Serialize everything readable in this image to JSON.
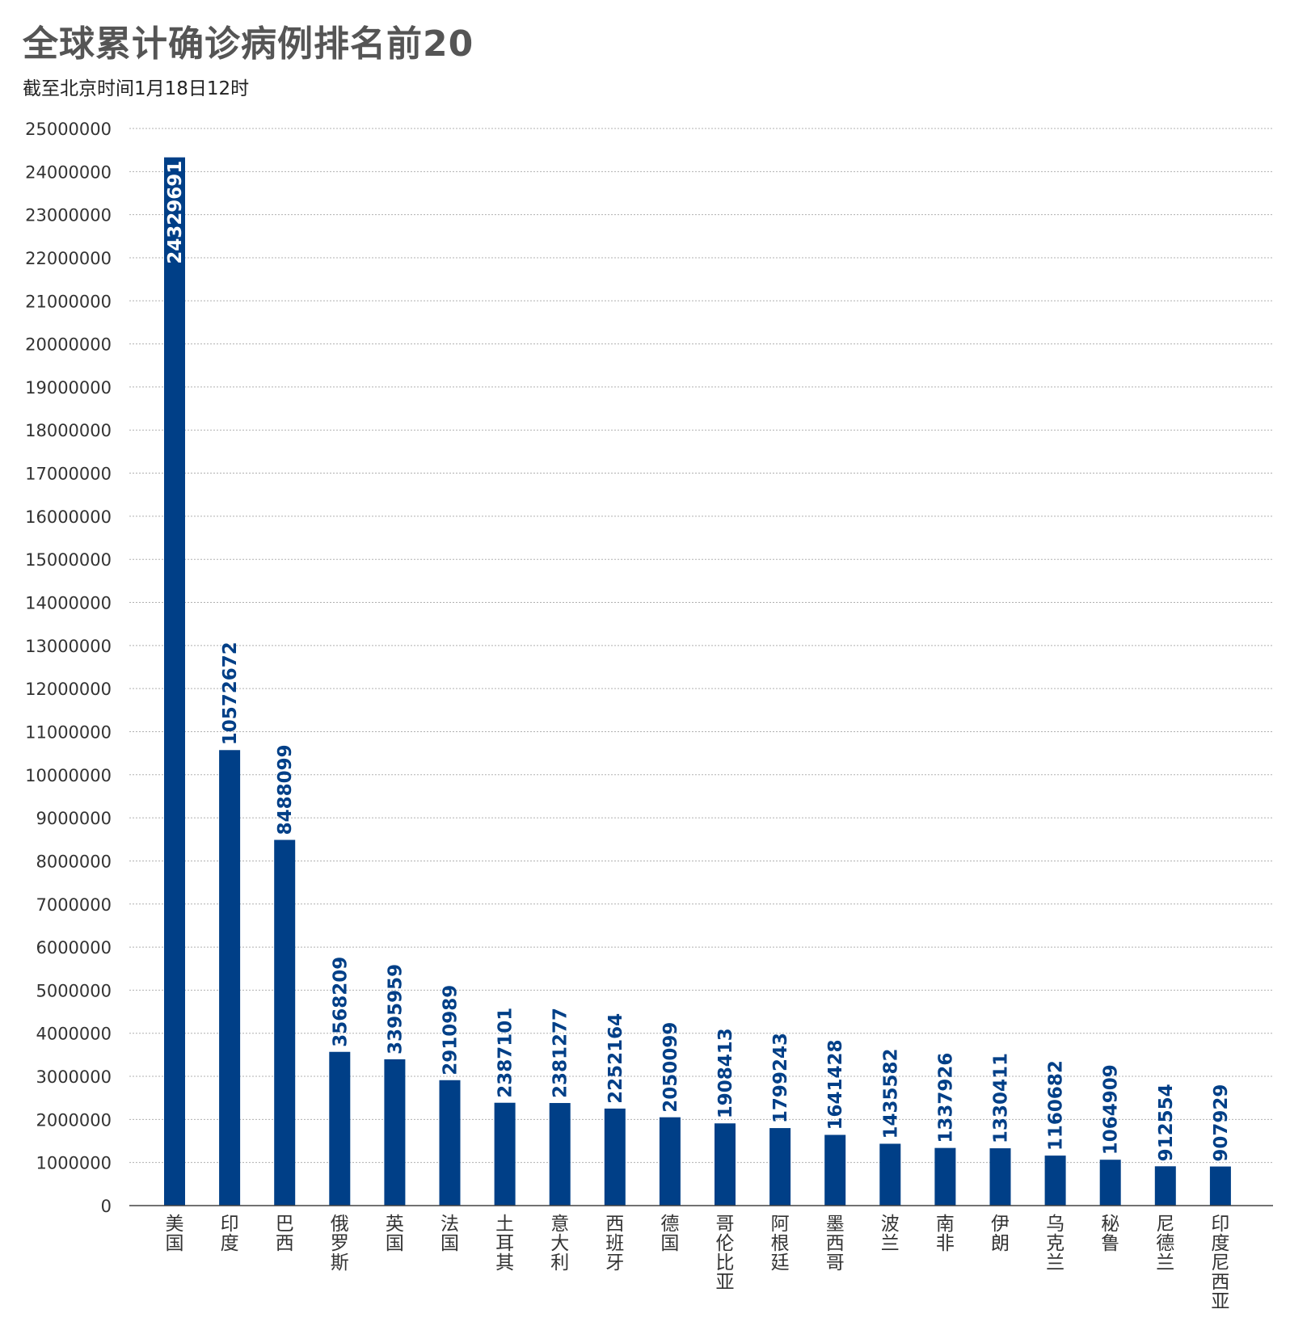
{
  "chart_data": {
    "type": "bar",
    "title": "全球累计确诊病例排名前20",
    "subtitle": "截至北京时间1月18日12时",
    "xlabel": "",
    "ylabel": "",
    "ylim": [
      0,
      25000000
    ],
    "ytick_step": 1000000,
    "grid": true,
    "categories": [
      "美国",
      "印度",
      "巴西",
      "俄罗斯",
      "英国",
      "法国",
      "土耳其",
      "意大利",
      "西班牙",
      "德国",
      "哥伦比亚",
      "阿根廷",
      "墨西哥",
      "波兰",
      "南非",
      "伊朗",
      "乌克兰",
      "秘鲁",
      "尼德兰",
      "印度尼西亚"
    ],
    "values": [
      24329691,
      10572672,
      8488099,
      3568209,
      3395959,
      2910989,
      2387101,
      2381277,
      2252164,
      2050099,
      1908413,
      1799243,
      1641428,
      1435582,
      1337926,
      1330411,
      1160682,
      1064909,
      912554,
      907929
    ],
    "colors": {
      "bar": "#003f87",
      "label_on_bar": "#ffffff",
      "label_above": "#003f87"
    }
  }
}
